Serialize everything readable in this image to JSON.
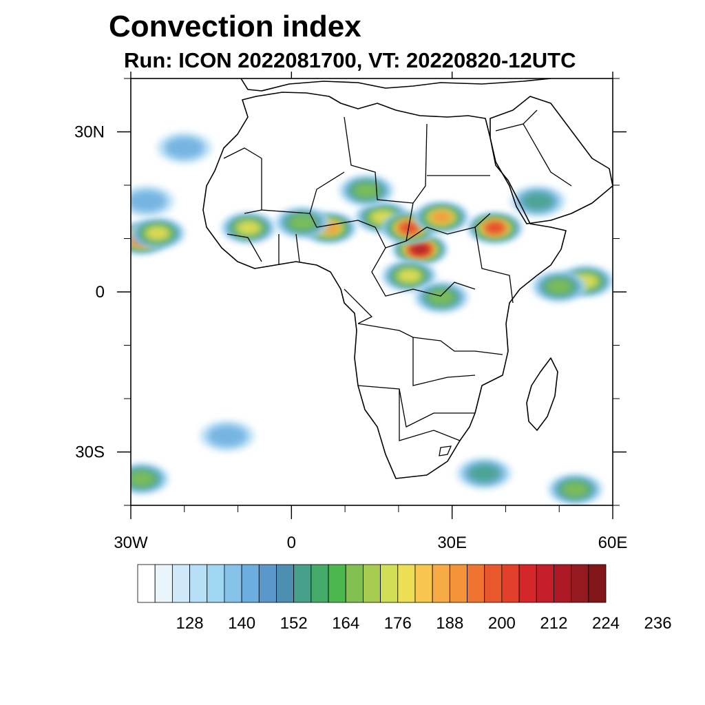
{
  "title": "Convection index",
  "subtitle": "Run: ICON 2022081700,  VT: 20220820-12UTC",
  "map": {
    "projection": "lat-lon",
    "lon_range": [
      -30,
      60
    ],
    "lat_range": [
      -40,
      40
    ],
    "x_ticks": [
      {
        "lon": -30,
        "label": "30W"
      },
      {
        "lon": 0,
        "label": "0"
      },
      {
        "lon": 30,
        "label": "30E"
      },
      {
        "lon": 60,
        "label": "60E"
      }
    ],
    "y_ticks": [
      {
        "lat": 30,
        "label": "30N"
      },
      {
        "lat": 0,
        "label": "0"
      },
      {
        "lat": -30,
        "label": "30S"
      }
    ]
  },
  "colorbar": {
    "colors": [
      "#ffffff",
      "#e9f4fb",
      "#cfe9f8",
      "#b6def5",
      "#9fd6f2",
      "#84c2e8",
      "#6baedf",
      "#5a98cc",
      "#4d8fb0",
      "#46a08a",
      "#44ab6b",
      "#4cb74c",
      "#82c14f",
      "#a8cc50",
      "#d2de55",
      "#eddf55",
      "#f7c64f",
      "#f7ab45",
      "#f59338",
      "#ef7430",
      "#e9582c",
      "#e2402b",
      "#d5272a",
      "#c41e2a",
      "#ad1a25",
      "#951a1f",
      "#801618"
    ],
    "labels": [
      "128",
      "140",
      "152",
      "164",
      "176",
      "188",
      "200",
      "212",
      "224",
      "236"
    ]
  },
  "convection_cells": [
    {
      "lon": 17,
      "lat": 14,
      "value": 176
    },
    {
      "lon": 24,
      "lat": 8,
      "value": 212
    },
    {
      "lon": 22,
      "lat": 12,
      "value": 200
    },
    {
      "lon": 28,
      "lat": 14,
      "value": 188
    },
    {
      "lon": 38,
      "lat": 12,
      "value": 200
    },
    {
      "lon": 7,
      "lat": 12,
      "value": 188
    },
    {
      "lon": -8,
      "lat": 12,
      "value": 176
    },
    {
      "lon": 2,
      "lat": 13,
      "value": 164
    },
    {
      "lon": 22,
      "lat": 3,
      "value": 176
    },
    {
      "lon": 28,
      "lat": -1,
      "value": 164
    },
    {
      "lon": -28,
      "lat": 10,
      "value": 200
    },
    {
      "lon": -25,
      "lat": 11,
      "value": 176
    },
    {
      "lon": 55,
      "lat": 2,
      "value": 176
    },
    {
      "lon": 50,
      "lat": 1,
      "value": 164
    },
    {
      "lon": -28,
      "lat": -35,
      "value": 164
    },
    {
      "lon": 53,
      "lat": -37,
      "value": 164
    },
    {
      "lon": 36,
      "lat": -34,
      "value": 152
    },
    {
      "lon": 14,
      "lat": 19,
      "value": 164
    },
    {
      "lon": -20,
      "lat": 27,
      "value": 140
    },
    {
      "lon": -27,
      "lat": 17,
      "value": 140
    },
    {
      "lon": 46,
      "lat": 17,
      "value": 152
    },
    {
      "lon": -12,
      "lat": -27,
      "value": 140
    }
  ]
}
